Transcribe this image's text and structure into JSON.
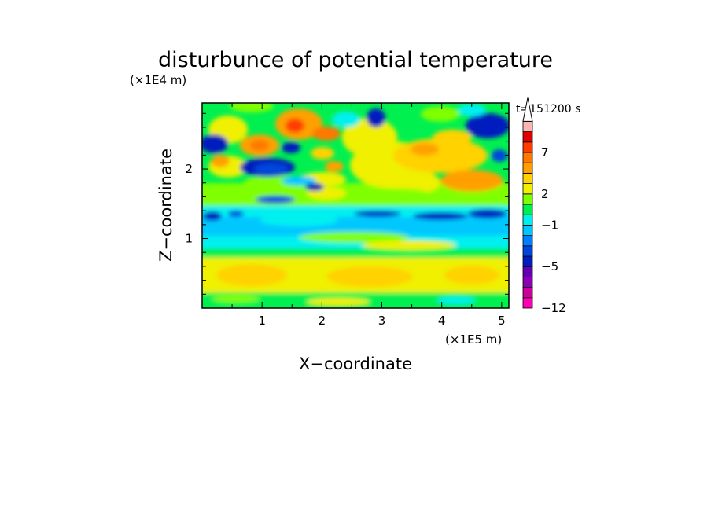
{
  "chart_data": {
    "type": "heatmap",
    "title": "disturbunce of potential temperature",
    "time_label": "t=151200 s",
    "xlabel": "X−coordinate",
    "ylabel": "Z−coordinate",
    "x_scale_label": "(×1E5 m)",
    "y_scale_label": "(×1E4 m)",
    "xlim": [
      0,
      5.12
    ],
    "ylim": [
      0,
      2.95
    ],
    "x_ticks": [
      1,
      2,
      3,
      4,
      5
    ],
    "x_tick_labels": [
      "1",
      "2",
      "3",
      "4",
      "5"
    ],
    "y_ticks": [
      1,
      2
    ],
    "y_tick_labels": [
      "1",
      "2"
    ],
    "colorbar": {
      "levels": [
        -12,
        -10,
        -8,
        -7,
        -5,
        -4,
        -3,
        -2,
        -1,
        0,
        1,
        2,
        3,
        4,
        5,
        7,
        8,
        9,
        11
      ],
      "tick_values": [
        -12,
        -5,
        -1,
        2,
        7
      ],
      "tick_labels": [
        "−12",
        "−5",
        "−1",
        "2",
        "7"
      ],
      "colors": [
        "#ff00b4",
        "#cc0099",
        "#8c00b4",
        "#6400b4",
        "#001ebe",
        "#0046dc",
        "#0080ff",
        "#00c8ff",
        "#00f0f0",
        "#00f050",
        "#7fff00",
        "#f0f000",
        "#ffd200",
        "#ffa000",
        "#ff7800",
        "#ff3c00",
        "#e10000",
        "#ffb4b4"
      ],
      "extend": "max"
    }
  }
}
